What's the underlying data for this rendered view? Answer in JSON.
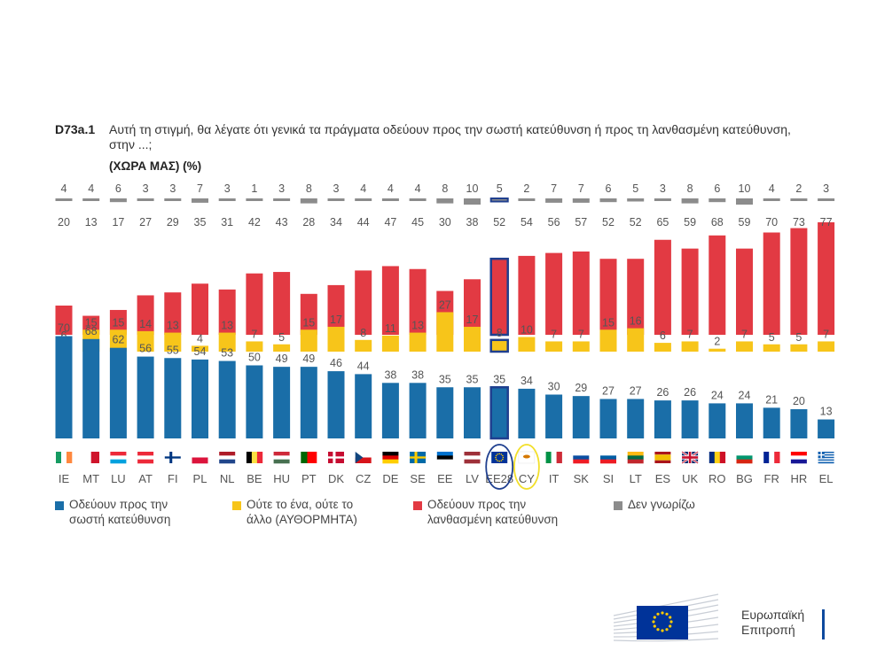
{
  "title": {
    "code": "D73a.1",
    "text": "Αυτή τη στιγμή, θα λέγατε ότι γενικά τα πράγματα οδεύουν προς την σωστή κατεύθυνση ή προς τη λανθασμένη κατεύθυνση, στην ...;",
    "subtitle": "(ΧΩΡΑ ΜΑΣ) (%)"
  },
  "colors": {
    "right": "#1a6ea8",
    "neither": "#f7c51a",
    "wrong": "#e23a43",
    "dontknow": "#8c8c8c",
    "highlight_eu": "#1f3f8f",
    "highlight_cy": "#f2df2a"
  },
  "chart_data": {
    "type": "bar",
    "stacking": "grouped-stacked-panels",
    "title": "D73a.1 Αυτή τη στιγμή, θα λέγατε ότι γενικά τα πράγματα οδεύουν προς την σωστή κατεύθυνση ή προς τη λανθασμένη κατεύθυνση, στην ...; (ΧΩΡΑ ΜΑΣ) (%)",
    "categories": [
      "IE",
      "MT",
      "LU",
      "AT",
      "FI",
      "PL",
      "NL",
      "BE",
      "HU",
      "PT",
      "DK",
      "CZ",
      "DE",
      "SE",
      "EE",
      "LV",
      "EE28",
      "CY",
      "IT",
      "SK",
      "SI",
      "LT",
      "ES",
      "UK",
      "RO",
      "BG",
      "FR",
      "HR",
      "EL"
    ],
    "highlighted": [
      "EE28",
      "CY"
    ],
    "series": [
      {
        "name": "Οδεύουν προς την σωστή κατεύθυνση",
        "key": "right",
        "values": [
          70,
          68,
          62,
          56,
          55,
          54,
          53,
          50,
          49,
          49,
          46,
          44,
          38,
          38,
          35,
          35,
          35,
          34,
          30,
          29,
          27,
          27,
          26,
          26,
          24,
          24,
          21,
          20,
          13
        ]
      },
      {
        "name": "Ούτε το ένα, ούτε το άλλο (ΑΥΘΟΡΜΗΤΑ)",
        "key": "neither",
        "values": [
          6,
          15,
          15,
          14,
          13,
          4,
          13,
          7,
          5,
          15,
          17,
          8,
          11,
          13,
          27,
          17,
          8,
          10,
          7,
          7,
          15,
          16,
          6,
          7,
          2,
          7,
          5,
          5,
          7
        ]
      },
      {
        "name": "Οδεύουν προς την λανθασμένη κατεύθυνση",
        "key": "wrong",
        "values": [
          20,
          13,
          17,
          27,
          29,
          35,
          31,
          42,
          43,
          28,
          34,
          44,
          47,
          45,
          30,
          38,
          52,
          54,
          56,
          57,
          52,
          52,
          65,
          59,
          68,
          59,
          70,
          73,
          77
        ]
      },
      {
        "name": "Δεν γνωρίζω",
        "key": "dontknow",
        "values": [
          4,
          4,
          6,
          3,
          3,
          7,
          3,
          1,
          3,
          8,
          3,
          4,
          4,
          4,
          8,
          10,
          5,
          2,
          7,
          7,
          6,
          5,
          3,
          8,
          6,
          10,
          4,
          2,
          3
        ]
      }
    ]
  },
  "legend": [
    {
      "key": "right",
      "line1": "Οδεύουν προς την",
      "line2": "σωστή κατεύθυνση"
    },
    {
      "key": "neither",
      "line1": "Ούτε το ένα, ούτε το",
      "line2": "άλλο (ΑΥΘΟΡΜΗΤΑ)"
    },
    {
      "key": "wrong",
      "line1": "Οδεύουν προς την",
      "line2": "λανθασμένη κατεύθυνση"
    },
    {
      "key": "dontknow",
      "line1": "Δεν γνωρίζω",
      "line2": ""
    }
  ],
  "flags": [
    {
      "code": "IE",
      "type": "v",
      "colors": [
        "#169b62",
        "#ffffff",
        "#ff883e"
      ]
    },
    {
      "code": "MT",
      "type": "v",
      "colors": [
        "#ffffff",
        "#cf142b"
      ]
    },
    {
      "code": "LU",
      "type": "h",
      "colors": [
        "#ed2939",
        "#ffffff",
        "#00a1de"
      ]
    },
    {
      "code": "AT",
      "type": "h",
      "colors": [
        "#ed2939",
        "#ffffff",
        "#ed2939"
      ]
    },
    {
      "code": "FI",
      "type": "nordic",
      "colors": [
        "#ffffff",
        "#003580"
      ]
    },
    {
      "code": "PL",
      "type": "h",
      "colors": [
        "#ffffff",
        "#dc143c"
      ]
    },
    {
      "code": "NL",
      "type": "h",
      "colors": [
        "#ae1c28",
        "#ffffff",
        "#21468b"
      ]
    },
    {
      "code": "BE",
      "type": "v",
      "colors": [
        "#000000",
        "#fae042",
        "#ed2939"
      ]
    },
    {
      "code": "HU",
      "type": "h",
      "colors": [
        "#ce2939",
        "#ffffff",
        "#477050"
      ]
    },
    {
      "code": "PT",
      "type": "v2",
      "colors": [
        "#006600",
        "#ff0000"
      ]
    },
    {
      "code": "DK",
      "type": "nordic",
      "colors": [
        "#c60c30",
        "#ffffff"
      ]
    },
    {
      "code": "CZ",
      "type": "cz",
      "colors": [
        "#ffffff",
        "#d7141a",
        "#11457e"
      ]
    },
    {
      "code": "DE",
      "type": "h",
      "colors": [
        "#000000",
        "#dd0000",
        "#ffce00"
      ]
    },
    {
      "code": "SE",
      "type": "nordic",
      "colors": [
        "#006aa7",
        "#fecc00"
      ]
    },
    {
      "code": "EE",
      "type": "h",
      "colors": [
        "#0072ce",
        "#000000",
        "#ffffff"
      ]
    },
    {
      "code": "LV",
      "type": "h",
      "colors": [
        "#9e3039",
        "#ffffff",
        "#9e3039"
      ]
    },
    {
      "code": "EE28",
      "type": "eu",
      "colors": [
        "#003399",
        "#ffcc00"
      ]
    },
    {
      "code": "CY",
      "type": "cy",
      "colors": [
        "#ffffff",
        "#d57800"
      ]
    },
    {
      "code": "IT",
      "type": "v",
      "colors": [
        "#009246",
        "#ffffff",
        "#ce2b37"
      ]
    },
    {
      "code": "SK",
      "type": "h",
      "colors": [
        "#ffffff",
        "#0b4ea2",
        "#ee1c25"
      ]
    },
    {
      "code": "SI",
      "type": "h",
      "colors": [
        "#ffffff",
        "#005da4",
        "#ed1c24"
      ]
    },
    {
      "code": "LT",
      "type": "h",
      "colors": [
        "#fdb913",
        "#006a44",
        "#c1272d"
      ]
    },
    {
      "code": "ES",
      "type": "es",
      "colors": [
        "#aa151b",
        "#f1bf00",
        "#aa151b"
      ]
    },
    {
      "code": "UK",
      "type": "uk",
      "colors": [
        "#012169",
        "#ffffff",
        "#c8102e"
      ]
    },
    {
      "code": "RO",
      "type": "v",
      "colors": [
        "#002b7f",
        "#fcd116",
        "#ce1126"
      ]
    },
    {
      "code": "BG",
      "type": "h",
      "colors": [
        "#ffffff",
        "#00966e",
        "#d62612"
      ]
    },
    {
      "code": "FR",
      "type": "v",
      "colors": [
        "#002395",
        "#ffffff",
        "#ed2939"
      ]
    },
    {
      "code": "HR",
      "type": "h",
      "colors": [
        "#ff0000",
        "#ffffff",
        "#171796"
      ]
    },
    {
      "code": "EL",
      "type": "gr",
      "colors": [
        "#0d5eaf",
        "#ffffff"
      ]
    }
  ],
  "logo": {
    "line1": "Ευρωπαϊκή",
    "line2": "Επιτροπή"
  }
}
